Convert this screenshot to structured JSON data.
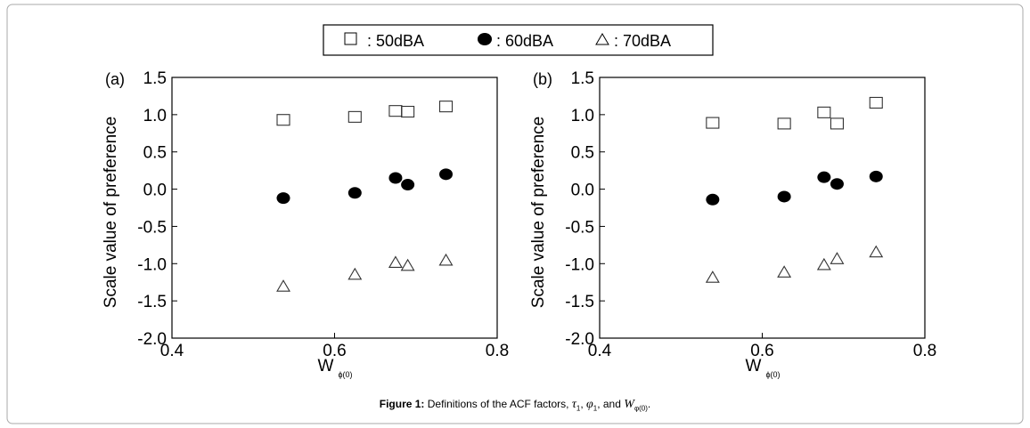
{
  "legend": [
    {
      "marker": "open-square",
      "label": ": 50dBA"
    },
    {
      "marker": "filled-circle",
      "label": ": 60dBA"
    },
    {
      "marker": "open-triangle",
      "label": ": 70dBA"
    }
  ],
  "caption": {
    "label": "Figure 1:",
    "text": "Definitions of the ACF factors,",
    "sym1": "τ",
    "sub1": "1",
    "sep1": ",",
    "sym2": "φ",
    "sub2": "1",
    "sep2": ", and",
    "sym3": "W",
    "sub3": "φ(0)",
    "end": "."
  },
  "chart_data": [
    {
      "type": "scatter",
      "panel": "(a)",
      "xlabel": "W",
      "xlabel_sub": "ϕ(0)",
      "ylabel": "Scale value of preference",
      "xlim": [
        0.4,
        0.8
      ],
      "ylim": [
        -2.0,
        1.5
      ],
      "xticks": [
        "0.4",
        "0.6",
        "0.8"
      ],
      "yticks": [
        "1.5",
        "1.0",
        "0.5",
        "0.0",
        "-0.5",
        "-1.0",
        "-1.5",
        "-2.0"
      ],
      "grid": false,
      "x": [
        0.537,
        0.625,
        0.675,
        0.69,
        0.737
      ],
      "series": [
        {
          "name": "50dBA",
          "marker": "open-square",
          "values": [
            0.93,
            0.97,
            1.05,
            1.04,
            1.11
          ]
        },
        {
          "name": "60dBA",
          "marker": "filled-circle",
          "values": [
            -0.12,
            -0.05,
            0.15,
            0.06,
            0.2
          ]
        },
        {
          "name": "70dBA",
          "marker": "open-triangle",
          "values": [
            -1.31,
            -1.15,
            -0.99,
            -1.03,
            -0.96
          ]
        }
      ]
    },
    {
      "type": "scatter",
      "panel": "(b)",
      "xlabel": "W",
      "xlabel_sub": "ϕ(0)",
      "ylabel": "Scale value of preference",
      "xlim": [
        0.4,
        0.8
      ],
      "ylim": [
        -2.0,
        1.5
      ],
      "xticks": [
        "0.4",
        "0.6",
        "0.8"
      ],
      "yticks": [
        "1.5",
        "1.0",
        "0.5",
        "0.0",
        "-0.5",
        "-1.0",
        "-1.5",
        "-2.0"
      ],
      "grid": false,
      "x": [
        0.539,
        0.627,
        0.676,
        0.692,
        0.74
      ],
      "series": [
        {
          "name": "50dBA",
          "marker": "open-square",
          "values": [
            0.89,
            0.88,
            1.03,
            0.88,
            1.16
          ]
        },
        {
          "name": "60dBA",
          "marker": "filled-circle",
          "values": [
            -0.14,
            -0.1,
            0.16,
            0.07,
            0.17
          ]
        },
        {
          "name": "70dBA",
          "marker": "open-triangle",
          "values": [
            -1.19,
            -1.12,
            -1.02,
            -0.94,
            -0.85
          ]
        }
      ]
    }
  ]
}
